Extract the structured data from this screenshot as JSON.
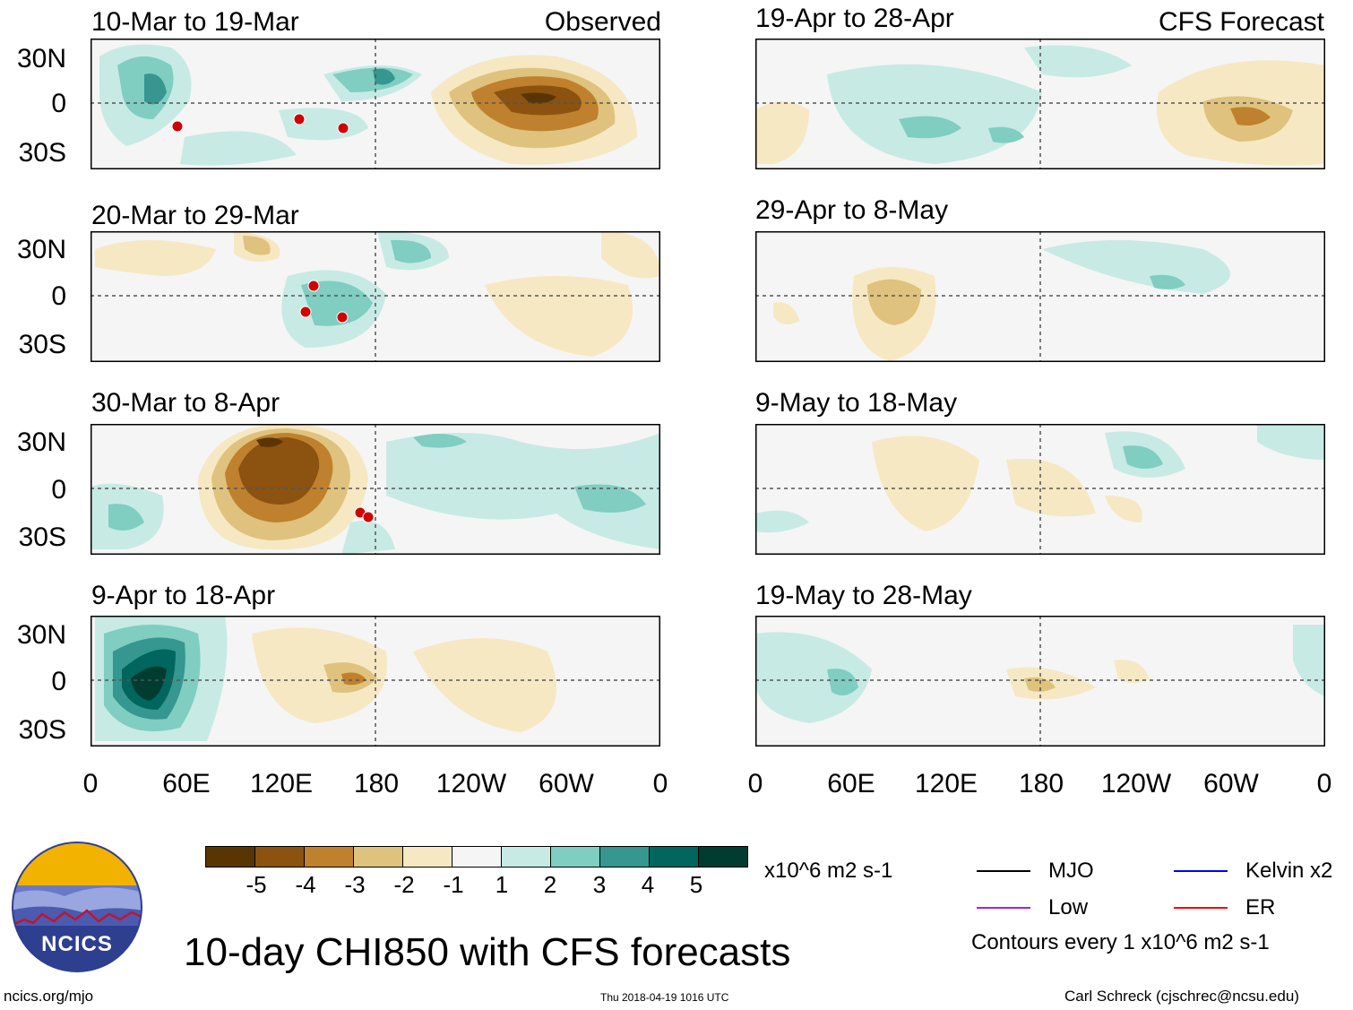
{
  "observed_label": "Observed",
  "forecast_label": "CFS Forecast",
  "panels": [
    {
      "id": "p1",
      "title": "10-Mar to 19-Mar"
    },
    {
      "id": "p2",
      "title": "20-Mar to 29-Mar"
    },
    {
      "id": "p3",
      "title": "30-Mar to 8-Apr"
    },
    {
      "id": "p4",
      "title": "9-Apr to 18-Apr"
    },
    {
      "id": "p5",
      "title": "19-Apr to 28-Apr"
    },
    {
      "id": "p6",
      "title": "29-Apr to 8-May"
    },
    {
      "id": "p7",
      "title": "9-May to 18-May"
    },
    {
      "id": "p8",
      "title": "19-May to 28-May"
    }
  ],
  "lat_labels": [
    "30N",
    "0",
    "30S"
  ],
  "lon_labels": [
    "0",
    "60E",
    "120E",
    "180",
    "120W",
    "60W",
    "0"
  ],
  "colorbar": {
    "colors": [
      "#5a3504",
      "#8c5210",
      "#bf812d",
      "#dfc27d",
      "#f6e8c3",
      "#f5f5f5",
      "#c7eae5",
      "#80cdc1",
      "#35978f",
      "#01665e",
      "#003c30"
    ],
    "labels": [
      "-5",
      "-4",
      "-3",
      "-2",
      "-1",
      "1",
      "2",
      "3",
      "4",
      "5"
    ],
    "units": "x10^6 m2 s-1"
  },
  "legend": {
    "items": [
      {
        "label": "MJO",
        "color": "#000000"
      },
      {
        "label": "Kelvin x2",
        "color": "#0000ff"
      },
      {
        "label": "Low",
        "color": "#a020f0"
      },
      {
        "label": "ER",
        "color": "#ff0000"
      }
    ],
    "contour_note": "Contours every 1 x10^6 m2 s-1"
  },
  "logo_text": "NCICS",
  "main_title": "10-day CHI850 with CFS forecasts",
  "footer": {
    "left": "ncics.org/mjo",
    "center": "Thu 2018-04-19 1016 UTC",
    "right": "Carl Schreck (cjschrec@ncsu.edu)"
  }
}
